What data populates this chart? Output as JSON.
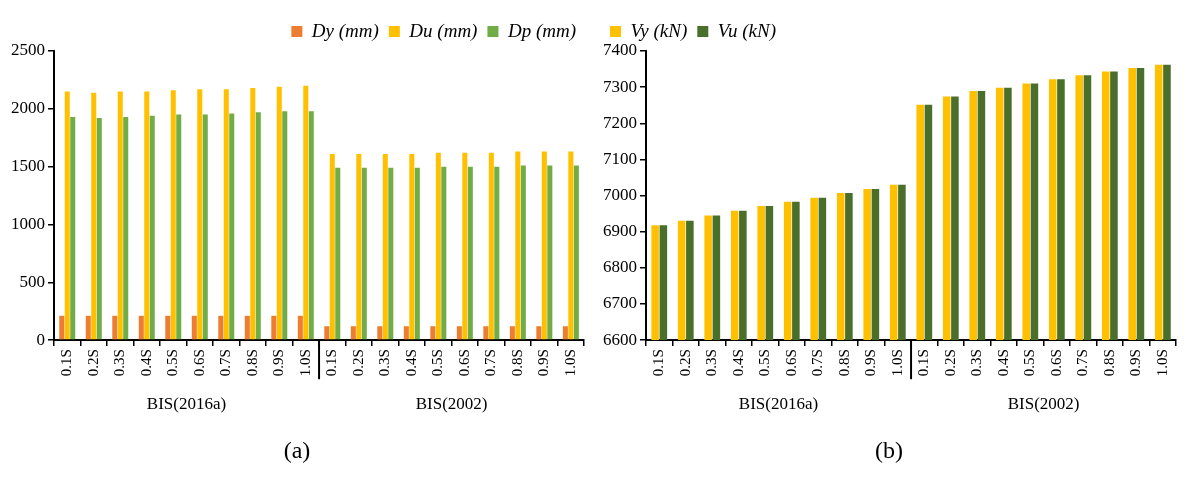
{
  "chart_data": [
    {
      "type": "bar",
      "title": "(a)",
      "categories": [
        "0.1S",
        "0.2S",
        "0.3S",
        "0.4S",
        "0.5S",
        "0.6S",
        "0.7S",
        "0.8S",
        "0.9S",
        "1.0S",
        "0.1S",
        "0.2S",
        "0.3S",
        "0.4S",
        "0.5S",
        "0.6S",
        "0.7S",
        "0.8S",
        "0.9S",
        "1.0S"
      ],
      "series": [
        {
          "name": "Dy (mm)",
          "color": "#ed7d31",
          "values": [
            210,
            210,
            210,
            210,
            210,
            210,
            210,
            210,
            210,
            210,
            120,
            120,
            120,
            120,
            120,
            120,
            120,
            120,
            120,
            120
          ]
        },
        {
          "name": "Du (mm)",
          "color": "#ffc000",
          "values": [
            2150,
            2140,
            2150,
            2150,
            2160,
            2170,
            2170,
            2180,
            2190,
            2200,
            1610,
            1610,
            1610,
            1610,
            1620,
            1620,
            1620,
            1630,
            1630,
            1630
          ]
        },
        {
          "name": "Dp (mm)",
          "color": "#70ad47",
          "values": [
            1930,
            1920,
            1930,
            1940,
            1950,
            1950,
            1960,
            1970,
            1980,
            1980,
            1490,
            1490,
            1490,
            1490,
            1500,
            1500,
            1500,
            1510,
            1510,
            1510
          ]
        }
      ],
      "ylim": [
        0,
        2500
      ],
      "yticks": [
        0,
        500,
        1000,
        1500,
        2000,
        2500
      ],
      "grid": false,
      "legend": "top right",
      "annotations": [
        "BIS(2016a)",
        "BIS(2002)"
      ]
    },
    {
      "type": "bar",
      "title": "(b)",
      "categories": [
        "0.1S",
        "0.2S",
        "0.3S",
        "0.4S",
        "0.5S",
        "0.6S",
        "0.7S",
        "0.8S",
        "0.9S",
        "1.0S",
        "0.1S",
        "0.2S",
        "0.3S",
        "0.4S",
        "0.5S",
        "0.6S",
        "0.7S",
        "0.8S",
        "0.9S",
        "1.0S"
      ],
      "series": [
        {
          "name": "Vy (kN)",
          "color": "#ffc000",
          "values": [
            6918,
            6930,
            6945,
            6958,
            6971,
            6983,
            6994,
            7007,
            7018,
            7030,
            7251,
            7274,
            7289,
            7298,
            7310,
            7322,
            7333,
            7343,
            7353,
            7362
          ]
        },
        {
          "name": "Vu (kN)",
          "color": "#4a6f2a",
          "values": [
            6918,
            6930,
            6945,
            6958,
            6971,
            6983,
            6994,
            7007,
            7018,
            7030,
            7251,
            7274,
            7289,
            7298,
            7310,
            7322,
            7333,
            7343,
            7353,
            7362
          ]
        }
      ],
      "ylim": [
        6600,
        7400
      ],
      "yticks": [
        6600,
        6700,
        6800,
        6900,
        7000,
        7100,
        7200,
        7300,
        7400
      ],
      "grid": false,
      "legend": "top left",
      "annotations": [
        "BIS(2016a)",
        "BIS(2002)"
      ]
    }
  ]
}
